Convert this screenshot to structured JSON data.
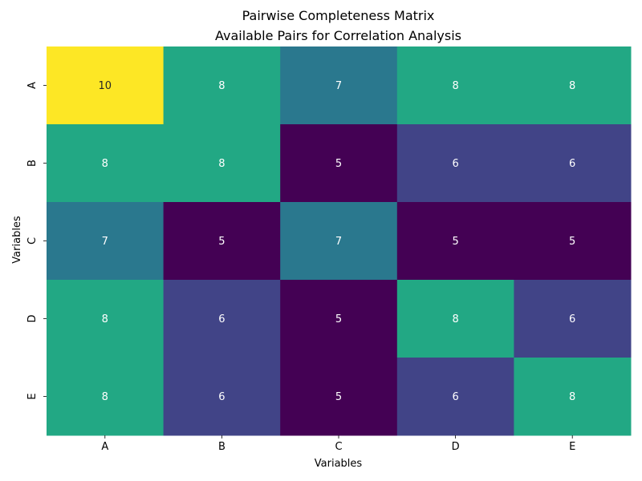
{
  "chart_data": {
    "type": "heatmap",
    "title": "Pairwise Completeness Matrix",
    "subtitle": "Available Pairs for Correlation Analysis",
    "xlabel": "Variables",
    "ylabel": "Variables",
    "x_categories": [
      "A",
      "B",
      "C",
      "D",
      "E"
    ],
    "y_categories": [
      "A",
      "B",
      "C",
      "D",
      "E"
    ],
    "values": [
      [
        10,
        8,
        7,
        8,
        8
      ],
      [
        8,
        8,
        5,
        6,
        6
      ],
      [
        7,
        5,
        7,
        5,
        5
      ],
      [
        8,
        6,
        5,
        8,
        6
      ],
      [
        8,
        6,
        5,
        6,
        8
      ]
    ],
    "colormap": "viridis",
    "value_range": [
      5,
      10
    ],
    "annotations": true,
    "colors": {
      "5": "#440154",
      "6": "#414487",
      "7": "#2a788e",
      "8": "#22a884",
      "10": "#fde725"
    }
  }
}
